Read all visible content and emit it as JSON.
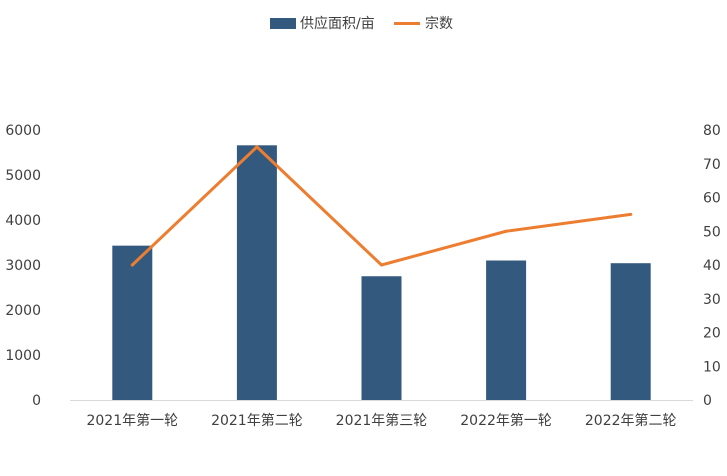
{
  "chart_data": {
    "type": "bar",
    "categories": [
      "2021年第一轮",
      "2021年第二轮",
      "2021年第三轮",
      "2022年第一轮",
      "2022年第二轮"
    ],
    "series": [
      {
        "name": "供应面积/亩",
        "type": "bar",
        "axis": "left",
        "color": "#335a7e",
        "values": [
          3430,
          5660,
          2750,
          3100,
          3040
        ]
      },
      {
        "name": "宗数",
        "type": "line",
        "axis": "right",
        "color": "#ed7d31",
        "values": [
          40,
          75,
          40,
          50,
          55
        ]
      }
    ],
    "y_left": {
      "min": 0,
      "max": 6000,
      "ticks": [
        "0",
        "1000",
        "2000",
        "3000",
        "4000",
        "5000",
        "6000"
      ]
    },
    "y_right": {
      "min": 0,
      "max": 80,
      "ticks": [
        "0",
        "10",
        "20",
        "30",
        "40",
        "50",
        "60",
        "70",
        "80"
      ]
    },
    "legend_position": "top",
    "grid": false
  }
}
